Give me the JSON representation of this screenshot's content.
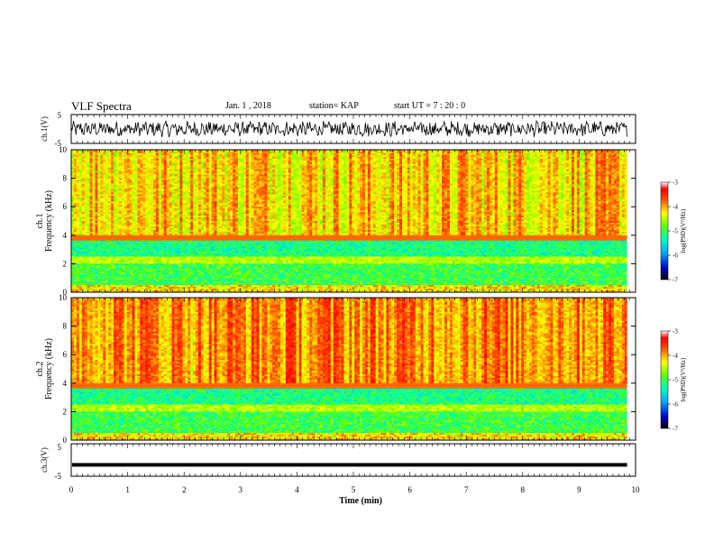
{
  "header": {
    "title": "VLF Spectra",
    "date": "Jan. 1 , 2018",
    "station": "station= KAP",
    "start": "start UT =  7 : 20 : 0"
  },
  "chart_data": [
    {
      "type": "line",
      "panel": "ch1-waveform",
      "ylabel": "ch.1(V)",
      "ylim": [
        -5,
        5
      ],
      "yticks": [
        "5",
        "-5"
      ],
      "xlim": [
        0,
        10
      ],
      "series": [
        {
          "values_description_only": false,
          "amplitude_approx": [
            -2.5,
            3.0
          ]
        }
      ],
      "color": "#000000"
    },
    {
      "type": "heatmap",
      "panel": "ch1-spectrogram",
      "ylabel": "ch.1\nFrequency (kHz)",
      "ylabel_top": "ch.1",
      "ylabel_bottom": "Frequency (kHz)",
      "ylim": [
        0,
        10
      ],
      "yticks": [
        "0",
        "2",
        "4",
        "6",
        "8",
        "10"
      ],
      "xlim": [
        0,
        10
      ],
      "colorbar": {
        "label": "log(PSD)(V²/Hz)",
        "ticks": [
          "-3",
          "-4",
          "-5",
          "-6",
          "-7"
        ],
        "range": [
          -7,
          -3
        ]
      }
    },
    {
      "type": "heatmap",
      "panel": "ch2-spectrogram",
      "ylabel_top": "ch.2",
      "ylabel_bottom": "Frequency (kHz)",
      "ylim": [
        0,
        10
      ],
      "yticks": [
        "0",
        "2",
        "4",
        "6",
        "8",
        "10"
      ],
      "xlim": [
        0,
        10
      ],
      "colorbar": {
        "label": "log(PSD)(V²/Hz)",
        "ticks": [
          "-3",
          "-4",
          "-5",
          "-6",
          "-7"
        ],
        "range": [
          -7,
          -3
        ]
      }
    },
    {
      "type": "line",
      "panel": "ch3-waveform",
      "ylabel": "ch.3(V)",
      "ylim": [
        -5,
        5
      ],
      "yticks": [
        "5",
        "-5"
      ],
      "xlim": [
        0,
        10
      ],
      "series": [
        {
          "values": [
            -1.5,
            -1.5
          ]
        }
      ],
      "color": "#000000"
    }
  ],
  "xaxis": {
    "label": "Time (min)",
    "ticks": [
      "0",
      "1",
      "2",
      "3",
      "4",
      "5",
      "6",
      "7",
      "8",
      "9",
      "10"
    ]
  }
}
